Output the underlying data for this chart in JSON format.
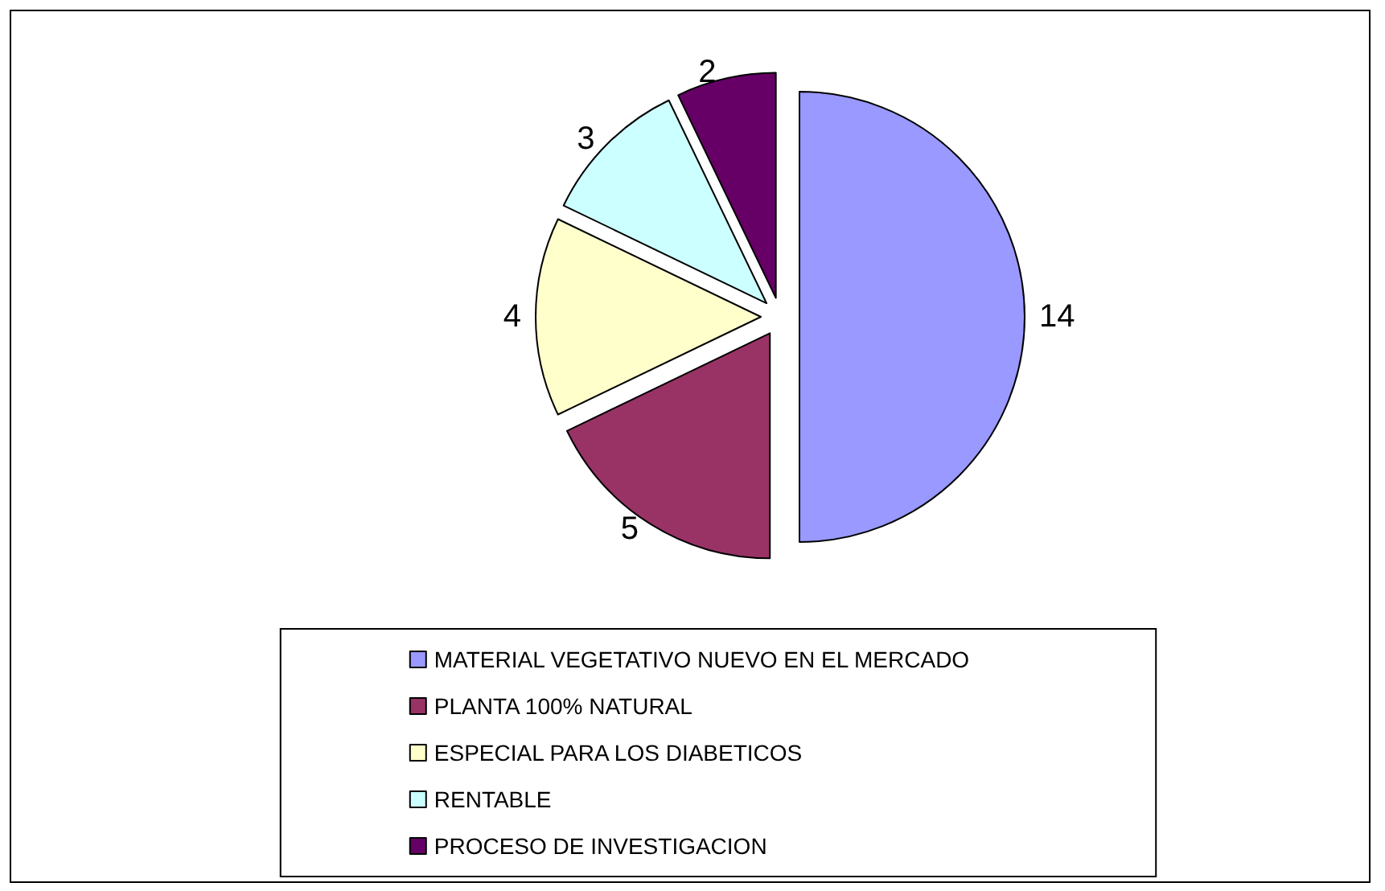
{
  "chart_data": {
    "type": "pie",
    "categories": [
      "MATERIAL VEGETATIVO NUEVO EN EL MERCADO",
      "PLANTA 100% NATURAL",
      "ESPECIAL PARA LOS DIABETICOS",
      "RENTABLE",
      "PROCESO DE INVESTIGACION"
    ],
    "values": [
      14,
      5,
      4,
      3,
      2
    ],
    "colors": [
      "#9999ff",
      "#993366",
      "#ffffcc",
      "#ccffff",
      "#660066"
    ],
    "data_labels": true,
    "legend": "bottom"
  }
}
